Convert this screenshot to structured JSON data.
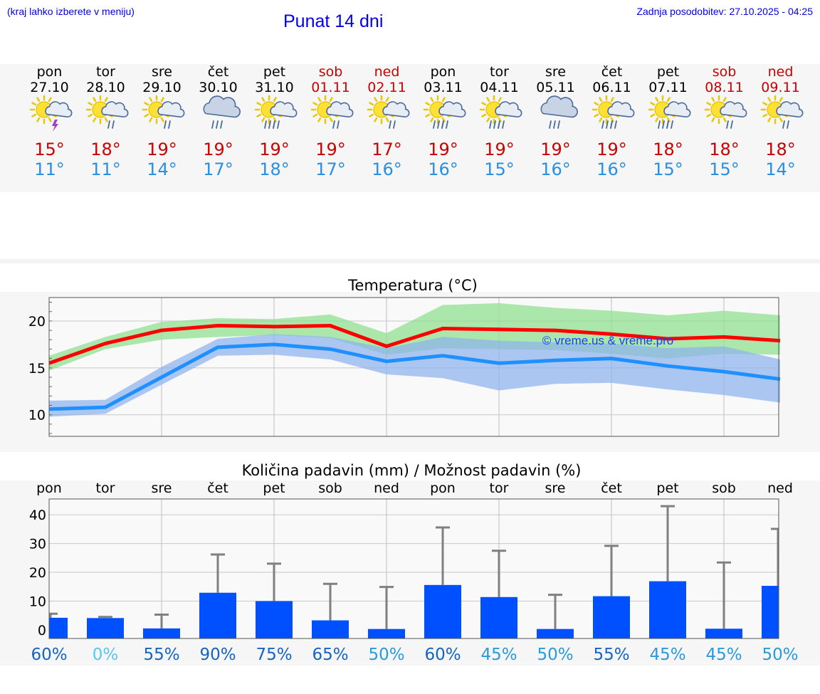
{
  "header": {
    "hint": "(kraj lahko izberete v meniju)",
    "title": "Punat 14 dni",
    "updated": "Zadnja posodobitev: 27.10.2025 - 04:25"
  },
  "forecast": [
    {
      "day": "pon",
      "date": "27.10",
      "max": "15°",
      "min": "11°",
      "icon": "sun-cloud-thunder-icon",
      "weekend": false
    },
    {
      "day": "tor",
      "date": "28.10",
      "max": "18°",
      "min": "11°",
      "icon": "sun-cloud-rain-icon",
      "weekend": false
    },
    {
      "day": "sre",
      "date": "29.10",
      "max": "19°",
      "min": "14°",
      "icon": "sun-cloud-rain-icon",
      "weekend": false
    },
    {
      "day": "čet",
      "date": "30.10",
      "max": "19°",
      "min": "17°",
      "icon": "cloud-rain-icon",
      "weekend": false
    },
    {
      "day": "pet",
      "date": "31.10",
      "max": "19°",
      "min": "18°",
      "icon": "sun-cloud-heavy-rain-icon",
      "weekend": false
    },
    {
      "day": "sob",
      "date": "01.11",
      "max": "19°",
      "min": "17°",
      "icon": "sun-cloud-rain-icon",
      "weekend": true
    },
    {
      "day": "ned",
      "date": "02.11",
      "max": "17°",
      "min": "16°",
      "icon": "sun-cloud-rain-icon",
      "weekend": true
    },
    {
      "day": "pon",
      "date": "03.11",
      "max": "19°",
      "min": "16°",
      "icon": "sun-cloud-heavy-rain-icon",
      "weekend": false
    },
    {
      "day": "tor",
      "date": "04.11",
      "max": "19°",
      "min": "15°",
      "icon": "sun-cloud-heavy-rain-icon",
      "weekend": false
    },
    {
      "day": "sre",
      "date": "05.11",
      "max": "19°",
      "min": "16°",
      "icon": "cloud-rain-icon",
      "weekend": false
    },
    {
      "day": "čet",
      "date": "06.11",
      "max": "19°",
      "min": "16°",
      "icon": "sun-cloud-heavy-rain-icon",
      "weekend": false
    },
    {
      "day": "pet",
      "date": "07.11",
      "max": "18°",
      "min": "15°",
      "icon": "sun-cloud-heavy-rain-icon",
      "weekend": false
    },
    {
      "day": "sob",
      "date": "08.11",
      "max": "18°",
      "min": "15°",
      "icon": "sun-cloud-rain-icon",
      "weekend": true
    },
    {
      "day": "ned",
      "date": "09.11",
      "max": "18°",
      "min": "14°",
      "icon": "sun-cloud-rain-icon",
      "weekend": true
    }
  ],
  "colors": {
    "max_line": "#ff0000",
    "min_line": "#1e90ff",
    "max_band": "#90e090",
    "min_band": "#8cb0f0",
    "bar": "#0050ff",
    "whisker": "#808080",
    "max_text": "#cc0000",
    "min_text": "#2a8fe0",
    "prob_high": "#1565c0",
    "prob_mid": "#2a9bd8",
    "prob_low": "#5bc6ec"
  },
  "chart_data": [
    {
      "type": "line",
      "title": "Temperatura (°C)",
      "watermark": "© vreme.us & vreme.pro",
      "ylim": [
        7.7,
        22.5
      ],
      "yticks": [
        10,
        15,
        20
      ],
      "x": [
        0,
        1,
        2,
        3,
        4,
        5,
        6,
        7,
        8,
        9,
        10,
        11,
        12,
        13
      ],
      "series": [
        {
          "name": "max",
          "values": [
            15.5,
            17.6,
            19.0,
            19.5,
            19.4,
            19.5,
            17.3,
            19.2,
            19.1,
            19.0,
            18.6,
            18.1,
            18.3,
            17.9
          ],
          "band_low": [
            14.7,
            17.0,
            18.0,
            18.3,
            18.5,
            18.2,
            16.4,
            17.1,
            17.0,
            16.9,
            16.5,
            16.0,
            16.5,
            16.4
          ],
          "band_high": [
            16.3,
            18.3,
            19.9,
            20.3,
            20.2,
            20.7,
            18.7,
            21.7,
            21.9,
            21.4,
            21.1,
            20.6,
            21.1,
            20.6
          ]
        },
        {
          "name": "min",
          "values": [
            10.6,
            10.8,
            14.0,
            17.2,
            17.5,
            17.0,
            15.7,
            16.3,
            15.5,
            15.8,
            16.0,
            15.2,
            14.6,
            13.8
          ],
          "band_low": [
            9.8,
            10.1,
            13.2,
            16.3,
            16.4,
            15.9,
            14.3,
            13.9,
            12.6,
            13.3,
            13.4,
            12.7,
            12.1,
            11.3
          ],
          "band_high": [
            11.5,
            11.6,
            15.1,
            18.1,
            18.6,
            18.3,
            17.1,
            18.3,
            17.9,
            17.7,
            17.6,
            17.1,
            17.3,
            15.9
          ]
        }
      ]
    },
    {
      "type": "bar",
      "title": "Količina padavin (mm) / Možnost padavin (%)",
      "categories": [
        "pon",
        "tor",
        "sre",
        "čet",
        "pet",
        "sob",
        "ned",
        "pon",
        "tor",
        "sre",
        "čet",
        "pet",
        "sob",
        "ned"
      ],
      "ylim": [
        -3,
        45.5
      ],
      "yticks": [
        0,
        10,
        20,
        30,
        40
      ],
      "values": [
        4.2,
        4.1,
        0.5,
        12.9,
        10.0,
        3.3,
        0.3,
        15.6,
        11.4,
        0.3,
        11.7,
        16.9,
        0.4,
        15.3
      ],
      "whisker": [
        5.6,
        4.5,
        5.3,
        26.2,
        23.0,
        16.0,
        14.9,
        35.6,
        27.5,
        12.2,
        29.2,
        43.0,
        23.4,
        35.1
      ],
      "probabilities": [
        "60%",
        "0%",
        "55%",
        "90%",
        "75%",
        "65%",
        "50%",
        "60%",
        "45%",
        "50%",
        "55%",
        "45%",
        "45%",
        "50%"
      ]
    }
  ]
}
